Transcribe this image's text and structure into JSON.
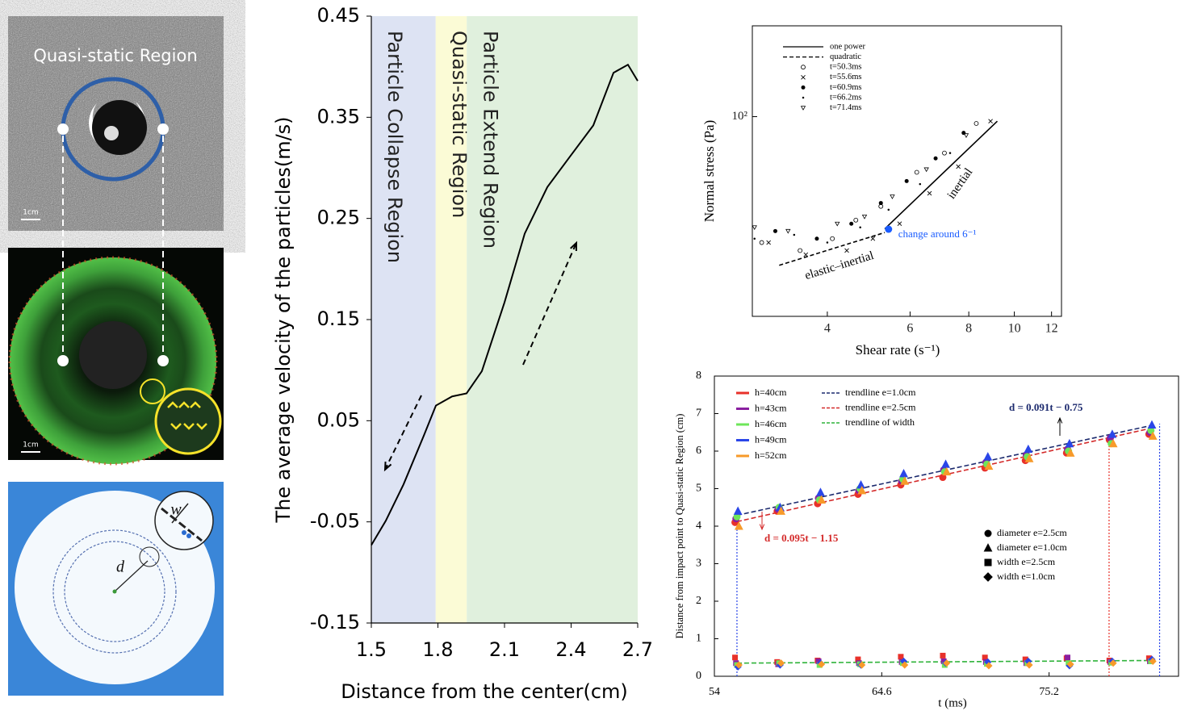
{
  "image_labels": {
    "panel1_title": "Quasi-static Region",
    "panel1_scale": "1cm",
    "panel2_scale": "1cm",
    "panel3_w": "w",
    "panel3_d": "d"
  },
  "chart_data": [
    {
      "type": "line",
      "x_label": "Distance from the center(cm)",
      "y_label": "The average velocity of the particles(m/s)",
      "x": [
        1.5,
        1.565,
        1.645,
        1.736,
        1.791,
        1.864,
        1.929,
        1.998,
        2.1,
        2.191,
        2.293,
        2.391,
        2.5,
        2.591,
        2.656,
        2.7
      ],
      "values": [
        -0.073,
        -0.049,
        -0.013,
        0.035,
        0.065,
        0.074,
        0.077,
        0.099,
        0.167,
        0.235,
        0.281,
        0.31,
        0.342,
        0.394,
        0.402,
        0.386
      ],
      "color": "#000000",
      "xlim": [
        1.5,
        2.7
      ],
      "ylim": [
        -0.15,
        0.45
      ],
      "xticks": [
        1.5,
        1.8,
        2.1,
        2.4,
        2.7
      ],
      "yticks": [
        -0.15,
        -0.05,
        0.05,
        0.15,
        0.25,
        0.35,
        0.45
      ],
      "regions": [
        {
          "label": "Particle Collapse Region",
          "from": 1.5,
          "to": 1.79,
          "color": "#dde3f3"
        },
        {
          "label": "Quasi-static Region",
          "from": 1.79,
          "to": 1.93,
          "color": "#fbfbd6"
        },
        {
          "label": "Particle Extend Region",
          "from": 1.93,
          "to": 2.7,
          "color": "#e0f0dd"
        }
      ]
    },
    {
      "type": "scatter",
      "x_label": "Shear rate (s⁻¹)",
      "y_label": "Normal stress (Pa)",
      "x_log": true,
      "y_log": true,
      "xlim": [
        2.77,
        12.6
      ],
      "ylim": [
        41,
        150
      ],
      "xticks": [
        4,
        6,
        8,
        10,
        12
      ],
      "yticks": [
        {
          "value": 100,
          "label": "10²"
        }
      ],
      "series": [
        {
          "name": "one power",
          "color": "#000000",
          "style": "solid",
          "x": [
            5.3,
            9.2
          ],
          "values": [
            60.6,
            98
          ]
        },
        {
          "name": "quadratic",
          "color": "#000000",
          "style": "dashed",
          "x": [
            3.16,
            5.3
          ],
          "values": [
            51.5,
            59.6
          ]
        },
        {
          "name": "t=50.3ms",
          "color": "#000000",
          "marker": "open-circle",
          "x": [
            2.9,
            3.5,
            4.1,
            4.6,
            5.2,
            6.2,
            7.1,
            8.3
          ],
          "values": [
            57,
            55,
            58,
            63,
            67,
            78,
            85,
            97
          ]
        },
        {
          "name": "t=55.6ms",
          "color": "#000000",
          "marker": "cross",
          "x": [
            3.0,
            3.6,
            4.4,
            5.0,
            5.7,
            6.6,
            7.6,
            8.9
          ],
          "values": [
            57,
            54,
            55,
            58,
            62,
            71,
            80,
            98
          ]
        },
        {
          "name": "t=60.9ms",
          "color": "#000000",
          "marker": "dot",
          "x": [
            3.1,
            3.8,
            4.5,
            5.2,
            5.9,
            6.8,
            7.8
          ],
          "values": [
            60,
            58,
            62,
            68,
            75,
            83,
            93
          ]
        },
        {
          "name": "t=66.2ms",
          "color": "#000000",
          "marker": "small-dot",
          "x": [
            2.8,
            3.4,
            4.0,
            4.7,
            5.4,
            6.3,
            7.3
          ],
          "values": [
            58,
            59,
            57,
            61,
            66,
            74,
            85
          ]
        },
        {
          "name": "t=71.4ms",
          "color": "#000000",
          "marker": "open-triangle-down",
          "x": [
            2.8,
            3.3,
            4.2,
            4.8,
            5.5,
            6.5,
            7.9
          ],
          "values": [
            61,
            60,
            62,
            64,
            70,
            79,
            92
          ]
        }
      ],
      "change_point": {
        "x": 5.4,
        "y": 60.5,
        "label": "change around 6⁻¹",
        "color": "#1a5cff"
      },
      "annotations": [
        "inertial",
        "elastic–inertial"
      ]
    },
    {
      "type": "scatter",
      "x_label": "t (ms)",
      "y_label": "Distance from impact point to Quasi-static Region (cm)",
      "xlim": [
        54,
        83.4
      ],
      "ylim": [
        0,
        8
      ],
      "xticks": [
        54,
        64.6,
        75.2
      ],
      "yticks": [
        0,
        1,
        2,
        3,
        4,
        5,
        6,
        7,
        8
      ],
      "x": [
        55.43,
        58.1,
        60.66,
        63.22,
        65.93,
        68.59,
        71.26,
        73.82,
        76.43,
        79.14,
        81.65
      ],
      "series": [
        {
          "name": "h=40cm",
          "color": "#e8312a",
          "shape": "circle",
          "width_shape": "square",
          "diameter": [
            4.1,
            4.4,
            4.6,
            4.85,
            5.1,
            5.3,
            5.55,
            5.75,
            5.95,
            6.3,
            6.45
          ],
          "width": [
            0.5,
            0.38,
            0.42,
            0.45,
            0.52,
            0.55,
            0.5,
            0.45,
            0.48,
            0.42,
            0.48
          ]
        },
        {
          "name": "h=43cm",
          "color": "#8a1fa0",
          "shape": "circle",
          "width_shape": "square",
          "diameter": [
            4.2,
            4.45,
            4.75,
            4.95,
            5.2,
            5.5,
            5.7,
            5.9,
            6.05,
            6.35,
            6.5
          ],
          "width": [
            0.35,
            0.32,
            0.4,
            0.35,
            0.38,
            0.4,
            0.38,
            0.35,
            0.5,
            0.38,
            0.4
          ]
        },
        {
          "name": "h=46cm",
          "color": "#6ee65a",
          "shape": "circle",
          "width_shape": "square",
          "diameter": [
            4.25,
            4.5,
            4.7,
            5.0,
            5.25,
            5.45,
            5.65,
            5.85,
            6.0,
            6.2,
            6.55
          ],
          "width": [
            0.3,
            0.35,
            0.3,
            0.32,
            0.35,
            0.3,
            0.33,
            0.35,
            0.35,
            0.36,
            0.4
          ]
        },
        {
          "name": "h=49cm",
          "color": "#2a46e8",
          "shape": "triangle",
          "width_shape": "diamond",
          "diameter": [
            4.4,
            4.5,
            4.9,
            5.1,
            5.4,
            5.65,
            5.85,
            6.05,
            6.2,
            6.45,
            6.7
          ],
          "width": [
            0.25,
            0.3,
            0.35,
            0.3,
            0.4,
            0.35,
            0.38,
            0.4,
            0.28,
            0.4,
            0.45
          ]
        },
        {
          "name": "h=52cm",
          "color": "#f79a2a",
          "shape": "triangle",
          "width_shape": "diamond",
          "diameter": [
            4.0,
            4.4,
            4.7,
            4.95,
            5.2,
            5.45,
            5.6,
            5.8,
            5.95,
            6.2,
            6.4
          ],
          "width": [
            0.3,
            0.35,
            0.32,
            0.3,
            0.3,
            0.35,
            0.28,
            0.3,
            0.32,
            0.35,
            0.4
          ]
        }
      ],
      "trendlines": [
        {
          "name": "trendline e=1.0cm",
          "color": "#1c2a6e",
          "x": [
            55.43,
            81.65
          ],
          "values": [
            4.29,
            6.68
          ],
          "equation": "d = 0.091t − 0.75"
        },
        {
          "name": "trendline e=2.5cm",
          "color": "#d42a2a",
          "x": [
            55.43,
            81.65
          ],
          "values": [
            4.12,
            6.61
          ],
          "equation": "d = 0.095t − 1.15"
        },
        {
          "name": "trendline of width",
          "color": "#2fb33a",
          "x": [
            55.43,
            81.65
          ],
          "values": [
            0.35,
            0.42
          ]
        }
      ],
      "marker_legend": [
        {
          "label": "diameter e=2.5cm",
          "shape": "circle"
        },
        {
          "label": "diameter e=1.0cm",
          "shape": "triangle"
        },
        {
          "label": "width e=2.5cm",
          "shape": "square"
        },
        {
          "label": "width e=1.0cm",
          "shape": "diamond"
        }
      ],
      "vlines": [
        {
          "x": 55.43,
          "color": "#2a46e8"
        },
        {
          "x": 79.0,
          "color": "#e8312a"
        },
        {
          "x": 82.2,
          "color": "#2a46e8"
        }
      ]
    }
  ]
}
